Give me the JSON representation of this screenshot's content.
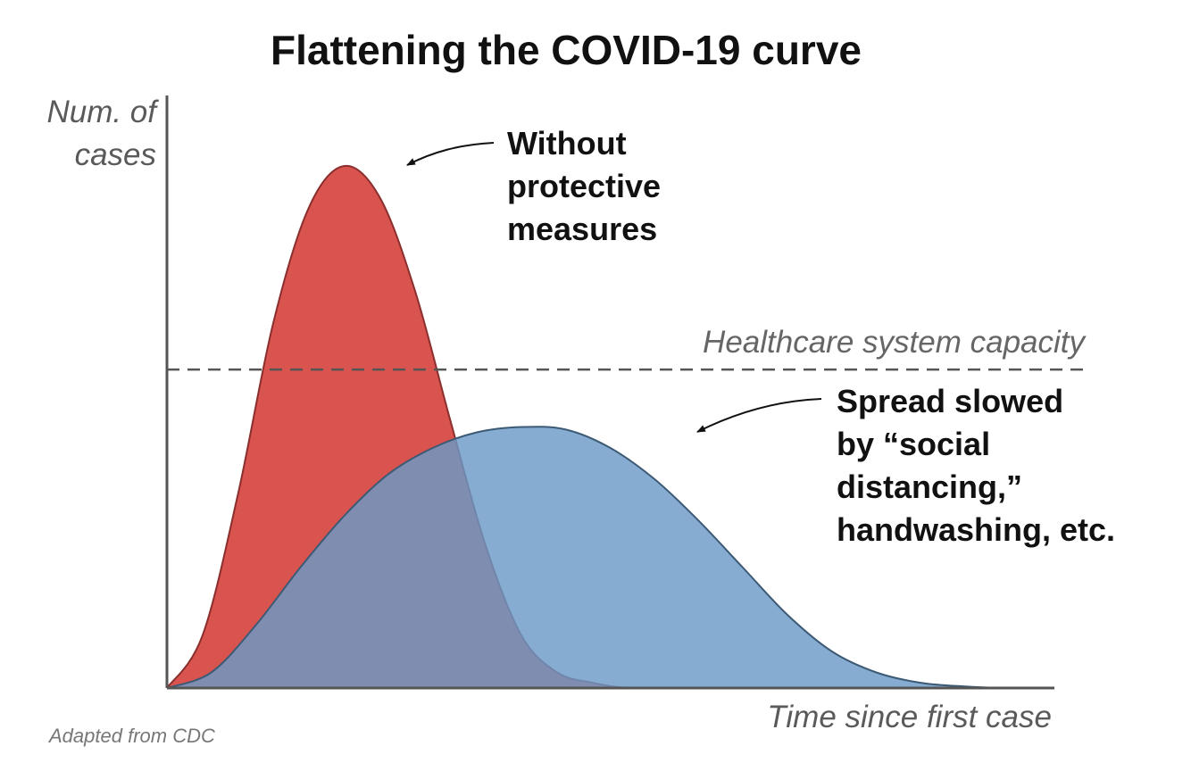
{
  "chart_data": {
    "type": "area",
    "title": "Flattening the COVID-19 curve",
    "ylabel_line1": "Num. of",
    "ylabel_line2": "cases",
    "xlabel": "Time since first case",
    "source": "Adapted from CDC",
    "xlim": [
      0,
      100
    ],
    "ylim": [
      0,
      100
    ],
    "capacity": {
      "label": "Healthcare system capacity",
      "value": 61
    },
    "series": [
      {
        "name": "Without protective measures",
        "color": "#d9534f",
        "stroke": "#8a2f2d",
        "x": [
          0,
          4,
          8,
          12,
          16,
          20,
          24,
          28,
          32,
          36,
          40,
          44,
          48,
          52,
          56,
          60
        ],
        "y": [
          0,
          10,
          37,
          70,
          92,
          100,
          94,
          76,
          51,
          27,
          10,
          3,
          1,
          0,
          0,
          0
        ]
      },
      {
        "name": "Spread slowed by “social distancing,” handwashing, etc.",
        "color": "#6b9ac7",
        "stroke": "#3d5a75",
        "x": [
          0,
          5,
          10,
          15,
          20,
          25,
          30,
          35,
          40,
          45,
          50,
          55,
          60,
          65,
          70,
          75,
          80,
          85,
          90,
          95,
          100
        ],
        "y": [
          0,
          3,
          12,
          23,
          33,
          41,
          46,
          49,
          50,
          49.5,
          46,
          40,
          32,
          23,
          14,
          7,
          3,
          1,
          0.3,
          0,
          0
        ]
      }
    ],
    "annotations": [
      {
        "target": "red",
        "lines": [
          "Without",
          "protective",
          "measures"
        ]
      },
      {
        "target": "blue",
        "lines": [
          "Spread slowed",
          "by “social",
          "distancing,”",
          "handwashing, etc."
        ]
      }
    ]
  }
}
